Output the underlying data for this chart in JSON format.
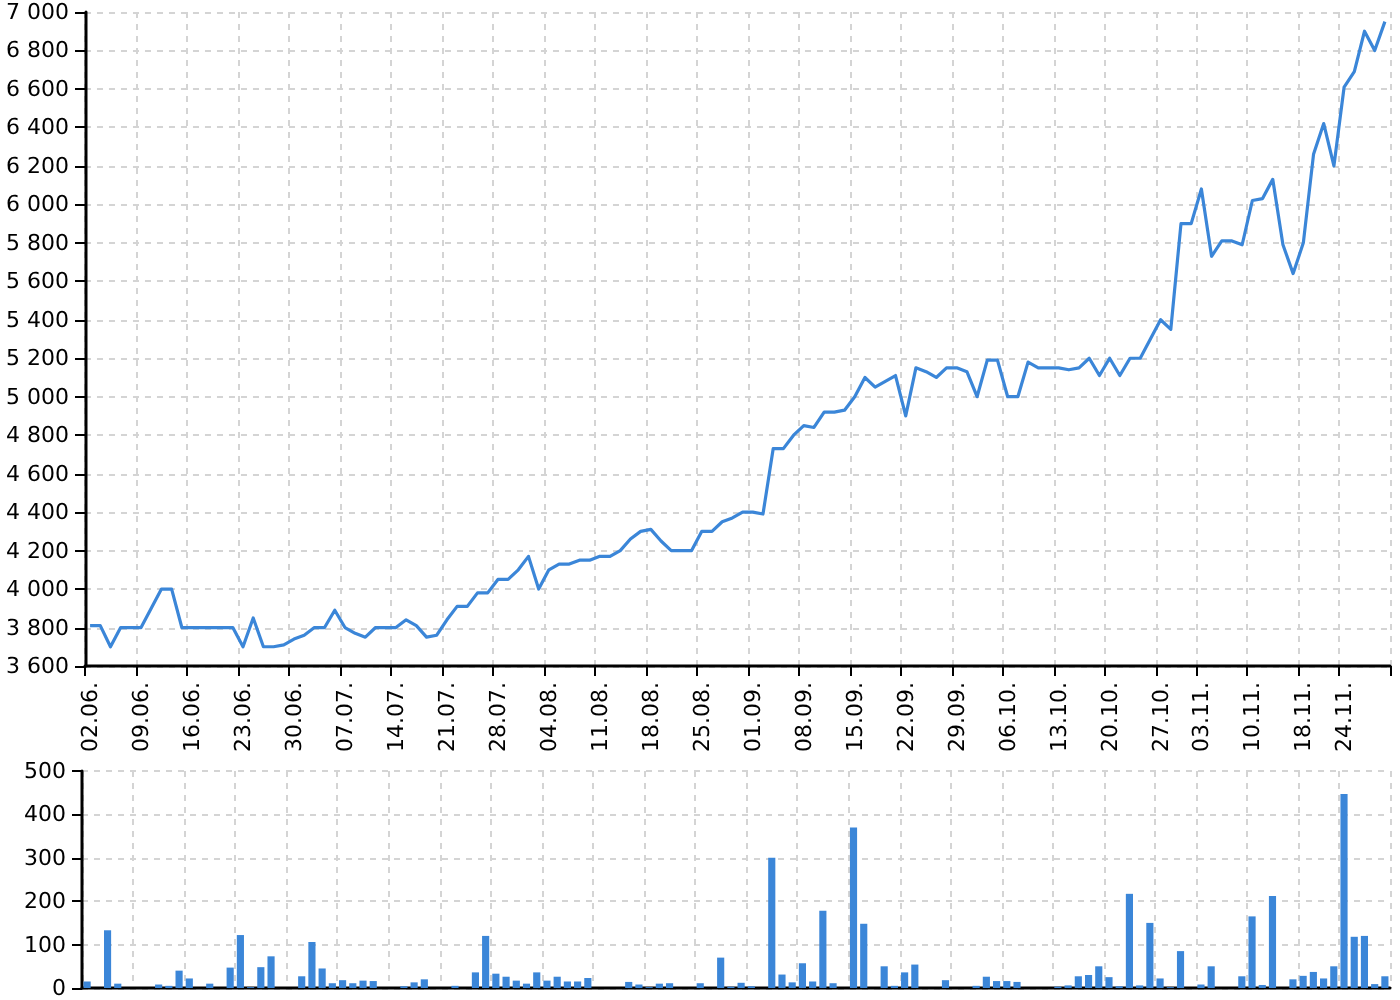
{
  "chart_data": [
    {
      "type": "line",
      "color": "#3b86d8",
      "categories": [
        "02.06.",
        null,
        null,
        null,
        null,
        "09.06.",
        null,
        null,
        null,
        null,
        "16.06.",
        null,
        null,
        null,
        null,
        "23.06.",
        null,
        null,
        null,
        null,
        "30.06.",
        null,
        null,
        null,
        null,
        "07.07.",
        null,
        null,
        null,
        null,
        "14.07.",
        null,
        null,
        null,
        null,
        "21.07.",
        null,
        null,
        null,
        null,
        "28.07.",
        null,
        null,
        null,
        null,
        "04.08.",
        null,
        null,
        null,
        null,
        "11.08.",
        null,
        null,
        null,
        null,
        "18.08.",
        null,
        null,
        null,
        null,
        "25.08.",
        null,
        null,
        null,
        null,
        "01.09.",
        null,
        null,
        null,
        null,
        "08.09.",
        null,
        null,
        null,
        null,
        "15.09.",
        null,
        null,
        null,
        null,
        "22.09.",
        null,
        null,
        null,
        null,
        "29.09.",
        null,
        null,
        null,
        null,
        "06.10.",
        null,
        null,
        null,
        null,
        "13.10.",
        null,
        null,
        null,
        null,
        "20.10.",
        null,
        null,
        null,
        null,
        "27.10.",
        null,
        null,
        null,
        "03.11.",
        null,
        null,
        null,
        null,
        "10.11.",
        null,
        null,
        null,
        null,
        "18.11.",
        null,
        null,
        null,
        "24.11.",
        null,
        null,
        null,
        null
      ],
      "values": [
        3810,
        3810,
        3700,
        3800,
        3800,
        3800,
        3900,
        4000,
        4000,
        3800,
        3800,
        3800,
        3800,
        3800,
        3800,
        3700,
        3850,
        3700,
        3700,
        3710,
        3740,
        3760,
        3800,
        3800,
        3890,
        3800,
        3770,
        3750,
        3800,
        3800,
        3800,
        3840,
        3810,
        3750,
        3760,
        3840,
        3910,
        3910,
        3980,
        3980,
        4050,
        4050,
        4100,
        4170,
        4000,
        4100,
        4130,
        4130,
        4150,
        4150,
        4170,
        4170,
        4200,
        4260,
        4300,
        4310,
        4250,
        4200,
        4200,
        4200,
        4300,
        4300,
        4350,
        4370,
        4400,
        4400,
        4390,
        4730,
        4730,
        4800,
        4850,
        4840,
        4920,
        4920,
        4930,
        5000,
        5100,
        5050,
        5080,
        5110,
        4900,
        5150,
        5130,
        5100,
        5150,
        5150,
        5130,
        5000,
        5190,
        5190,
        5000,
        5000,
        5180,
        5150,
        5150,
        5150,
        5140,
        5150,
        5200,
        5110,
        5200,
        5110,
        5200,
        5200,
        5300,
        5400,
        5350,
        5900,
        5900,
        6080,
        5730,
        5810,
        5810,
        5790,
        6020,
        6030,
        6130,
        5790,
        5640,
        5800,
        6260,
        6420,
        6200,
        6610,
        6690,
        6900,
        6800,
        6950
      ],
      "ylim": [
        3600,
        7000
      ],
      "yticks": [
        {
          "value": 3600,
          "label": "3 600"
        },
        {
          "value": 3800,
          "label": "3 800"
        },
        {
          "value": 4000,
          "label": "4 000"
        },
        {
          "value": 4200,
          "label": "4 200"
        },
        {
          "value": 4400,
          "label": "4 400"
        },
        {
          "value": 4600,
          "label": "4 600"
        },
        {
          "value": 4800,
          "label": "4 800"
        },
        {
          "value": 5000,
          "label": "5 000"
        },
        {
          "value": 5200,
          "label": "5 200"
        },
        {
          "value": 5400,
          "label": "5 400"
        },
        {
          "value": 5600,
          "label": "5 600"
        },
        {
          "value": 5800,
          "label": "5 800"
        },
        {
          "value": 6000,
          "label": "6 000"
        },
        {
          "value": 6200,
          "label": "6 200"
        },
        {
          "value": 6400,
          "label": "6 400"
        },
        {
          "value": 6600,
          "label": "6 600"
        },
        {
          "value": 6800,
          "label": "6 800"
        },
        {
          "value": 7000,
          "label": "7 000"
        }
      ],
      "grid": true
    },
    {
      "type": "bar",
      "color": "#3b86d8",
      "categories": [
        "02.06.",
        null,
        null,
        null,
        null,
        "09.06.",
        null,
        null,
        null,
        null,
        "16.06.",
        null,
        null,
        null,
        null,
        "23.06.",
        null,
        null,
        null,
        null,
        "30.06.",
        null,
        null,
        null,
        null,
        "07.07.",
        null,
        null,
        null,
        null,
        "14.07.",
        null,
        null,
        null,
        null,
        "21.07.",
        null,
        null,
        null,
        null,
        "28.07.",
        null,
        null,
        null,
        null,
        "04.08.",
        null,
        null,
        null,
        null,
        "11.08.",
        null,
        null,
        null,
        null,
        "18.08.",
        null,
        null,
        null,
        null,
        "25.08.",
        null,
        null,
        null,
        null,
        "01.09.",
        null,
        null,
        null,
        null,
        "08.09.",
        null,
        null,
        null,
        null,
        "15.09.",
        null,
        null,
        null,
        null,
        "22.09.",
        null,
        null,
        null,
        null,
        "29.09.",
        null,
        null,
        null,
        null,
        "06.10.",
        null,
        null,
        null,
        null,
        "13.10.",
        null,
        null,
        null,
        null,
        "20.10.",
        null,
        null,
        null,
        null,
        "27.10.",
        null,
        null,
        null,
        "03.11.",
        null,
        null,
        null,
        null,
        "10.11.",
        null,
        null,
        null,
        null,
        "18.11.",
        null,
        null,
        null,
        "24.11.",
        null,
        null,
        null,
        null
      ],
      "values": [
        15,
        0,
        133,
        10,
        0,
        0,
        0,
        8,
        5,
        40,
        22,
        0,
        10,
        0,
        47,
        122,
        2,
        48,
        73,
        0,
        0,
        27,
        106,
        45,
        11,
        18,
        11,
        17,
        16,
        0,
        0,
        4,
        13,
        20,
        0,
        0,
        5,
        0,
        36,
        120,
        33,
        26,
        17,
        10,
        36,
        17,
        26,
        15,
        15,
        23,
        0,
        0,
        0,
        14,
        8,
        2,
        10,
        11,
        0,
        0,
        11,
        0,
        70,
        3,
        12,
        4,
        0,
        300,
        31,
        13,
        57,
        15,
        178,
        11,
        0,
        370,
        148,
        0,
        50,
        5,
        36,
        54,
        0,
        0,
        18,
        0,
        0,
        5,
        26,
        16,
        16,
        14,
        0,
        0,
        0,
        3,
        6,
        27,
        30,
        50,
        25,
        4,
        217,
        6,
        150,
        22,
        2,
        85,
        0,
        8,
        50,
        0,
        0,
        27,
        165,
        7,
        212,
        0,
        20,
        28,
        37,
        22,
        50,
        447,
        118,
        120,
        9,
        27
      ],
      "ylim": [
        0,
        500
      ],
      "yticks": [
        0,
        100,
        200,
        300,
        400,
        500
      ],
      "grid": true,
      "tick_labels": "y"
    }
  ]
}
